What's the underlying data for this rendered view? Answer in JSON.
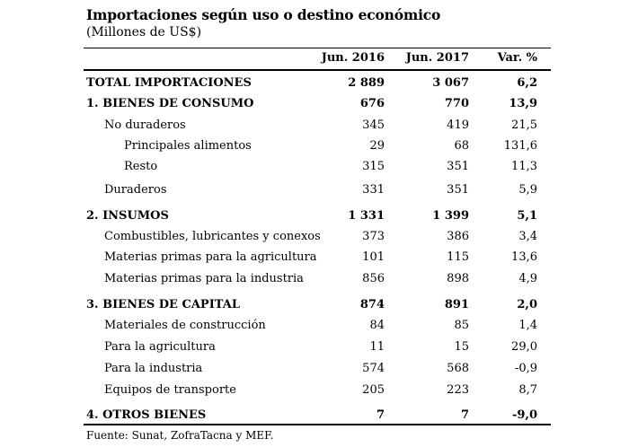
{
  "title": "Importaciones según uso o destino económico",
  "subtitle": "(Millones de US$)",
  "columns": [
    "Jun. 2016",
    "Jun. 2017",
    "Var. %"
  ],
  "rows": [
    {
      "label": "TOTAL IMPORTACIONES",
      "v1": "2 889",
      "v2": "3 067",
      "v3": "6,2"
    },
    {
      "label": "1. BIENES DE CONSUMO",
      "v1": "676",
      "v2": "770",
      "v3": "13,9"
    },
    {
      "label": "No duraderos",
      "v1": "345",
      "v2": "419",
      "v3": "21,5"
    },
    {
      "label": "Principales alimentos",
      "v1": "29",
      "v2": "68",
      "v3": "131,6"
    },
    {
      "label": "Resto",
      "v1": "315",
      "v2": "351",
      "v3": "11,3"
    },
    {
      "label": "Duraderos",
      "v1": "331",
      "v2": "351",
      "v3": "5,9"
    },
    {
      "label": "2. INSUMOS",
      "v1": "1 331",
      "v2": "1 399",
      "v3": "5,1"
    },
    {
      "label": "Combustibles, lubricantes y conexos",
      "v1": "373",
      "v2": "386",
      "v3": "3,4"
    },
    {
      "label": "Materias primas para la agricultura",
      "v1": "101",
      "v2": "115",
      "v3": "13,6"
    },
    {
      "label": "Materias primas para la industria",
      "v1": "856",
      "v2": "898",
      "v3": "4,9"
    },
    {
      "label": "3. BIENES DE CAPITAL",
      "v1": "874",
      "v2": "891",
      "v3": "2,0"
    },
    {
      "label": "Materiales de construcción",
      "v1": "84",
      "v2": "85",
      "v3": "1,4"
    },
    {
      "label": "Para la agricultura",
      "v1": "11",
      "v2": "15",
      "v3": "29,0"
    },
    {
      "label": "Para la industria",
      "v1": "574",
      "v2": "568",
      "v3": "-0,9"
    },
    {
      "label": "Equipos de transporte",
      "v1": "205",
      "v2": "223",
      "v3": "8,7"
    },
    {
      "label": "4. OTROS BIENES",
      "v1": "7",
      "v2": "7",
      "v3": "-9,0"
    }
  ],
  "footer": "Fuente: Sunat, ZofraTacna y MEF."
}
